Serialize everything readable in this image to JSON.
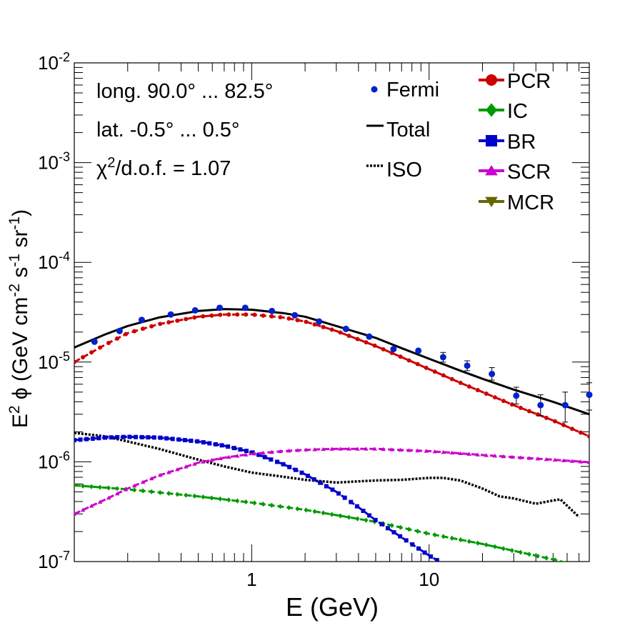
{
  "chart_data": {
    "type": "line",
    "xscale": "log",
    "yscale": "log",
    "xlim": [
      0.1,
      80
    ],
    "ylim": [
      1e-07,
      0.01
    ],
    "xlabel": "E (GeV)",
    "ylabel_parts": {
      "a": "E",
      "b": "2",
      "c": " ϕ (GeV cm",
      "d": "-2",
      "e": " s",
      "f": "-1",
      "g": " sr",
      "h": "-1",
      "i": ")"
    },
    "x_ticklabels": [
      {
        "v": 1,
        "label": "1"
      },
      {
        "v": 10,
        "label": "10"
      }
    ],
    "y_ticklabels": [
      {
        "exp": -7,
        "base": "10",
        "sup": "-7"
      },
      {
        "exp": -6,
        "base": "10",
        "sup": "-6"
      },
      {
        "exp": -5,
        "base": "10",
        "sup": "-5"
      },
      {
        "exp": -4,
        "base": "10",
        "sup": "-4"
      },
      {
        "exp": -3,
        "base": "10",
        "sup": "-3"
      },
      {
        "exp": -2,
        "base": "10",
        "sup": "-2"
      }
    ],
    "annotations": {
      "longitude": "long. 90.0° ... 82.5°",
      "latitude": "lat. -0.5° ... 0.5°",
      "chi_prefix": "χ",
      "chi_sup": "2",
      "chi_rest": "/d.o.f. = 1.07"
    },
    "legend_left": [
      {
        "key": "fermi",
        "label": "Fermi"
      },
      {
        "key": "total",
        "label": "Total"
      },
      {
        "key": "iso",
        "label": "ISO"
      }
    ],
    "legend_right": [
      {
        "key": "pcr",
        "label": "PCR",
        "color": "#cc0000",
        "marker": "circle"
      },
      {
        "key": "ic",
        "label": "IC",
        "color": "#009900",
        "marker": "diamond"
      },
      {
        "key": "br",
        "label": "BR",
        "color": "#0000cc",
        "marker": "square"
      },
      {
        "key": "scr",
        "label": "SCR",
        "color": "#cc00cc",
        "marker": "triangle-up"
      },
      {
        "key": "mcr",
        "label": "MCR",
        "color": "#666600",
        "marker": "triangle-down"
      }
    ],
    "fermi": {
      "color": "#0022cc",
      "points": [
        {
          "x": 0.13,
          "y": 1.6e-05
        },
        {
          "x": 0.18,
          "y": 2.05e-05
        },
        {
          "x": 0.24,
          "y": 2.65e-05
        },
        {
          "x": 0.35,
          "y": 3e-05
        },
        {
          "x": 0.48,
          "y": 3.3e-05
        },
        {
          "x": 0.66,
          "y": 3.5e-05
        },
        {
          "x": 0.92,
          "y": 3.5e-05
        },
        {
          "x": 1.3,
          "y": 3.25e-05
        },
        {
          "x": 1.75,
          "y": 2.95e-05
        },
        {
          "x": 2.4,
          "y": 2.55e-05
        },
        {
          "x": 3.4,
          "y": 2.15e-05
        },
        {
          "x": 4.6,
          "y": 1.8e-05
        },
        {
          "x": 6.3,
          "y": 1.35e-05
        },
        {
          "x": 8.7,
          "y": 1.3e-05
        },
        {
          "x": 12,
          "y": 1.12e-05,
          "err": [
            1e-05,
            1.25e-05
          ]
        },
        {
          "x": 16.4,
          "y": 9.2e-06,
          "err": [
            8.2e-06,
            1.03e-05
          ]
        },
        {
          "x": 22.6,
          "y": 7.6e-06,
          "err": [
            6.6e-06,
            8.8e-06
          ]
        },
        {
          "x": 31,
          "y": 4.6e-06,
          "err": [
            3.8e-06,
            5.6e-06
          ]
        },
        {
          "x": 42.5,
          "y": 3.7e-06,
          "err": [
            2.9e-06,
            4.7e-06
          ]
        },
        {
          "x": 58.5,
          "y": 3.7e-06,
          "err": [
            2.5e-06,
            5e-06
          ]
        },
        {
          "x": 80,
          "y": 4.7e-06,
          "err": [
            3.3e-06,
            6.2e-06
          ]
        }
      ]
    },
    "series": [
      {
        "name": "Total",
        "color": "#000000",
        "style": "solid",
        "x": [
          0.1,
          0.15,
          0.2,
          0.3,
          0.5,
          0.7,
          1,
          1.5,
          2,
          3,
          5,
          7,
          10,
          15,
          20,
          30,
          50,
          80
        ],
        "y": [
          1.4e-05,
          1.9e-05,
          2.3e-05,
          2.8e-05,
          3.25e-05,
          3.4e-05,
          3.35e-05,
          3.1e-05,
          2.85e-05,
          2.3e-05,
          1.75e-05,
          1.38e-05,
          1.08e-05,
          8.2e-06,
          6.8e-06,
          5.3e-06,
          4e-06,
          3e-06
        ]
      },
      {
        "name": "ISO",
        "color": "#000000",
        "style": "dotted",
        "x": [
          0.1,
          0.15,
          0.2,
          0.3,
          0.5,
          0.7,
          1,
          1.5,
          2,
          3,
          5,
          7,
          10,
          12,
          15,
          20,
          25,
          30,
          40,
          50,
          55,
          70
        ],
        "y": [
          1.95e-06,
          1.8e-06,
          1.6e-06,
          1.35e-06,
          1.05e-06,
          9e-07,
          7.8e-07,
          7.1e-07,
          6.6e-07,
          6.2e-07,
          6.5e-07,
          6.6e-07,
          6.9e-07,
          6.9e-07,
          6.5e-07,
          5.4e-07,
          4.5e-07,
          4.3e-07,
          3.8e-07,
          4.1e-07,
          4.2e-07,
          2.8e-07
        ]
      },
      {
        "name": "PCR",
        "color": "#cc0000",
        "style": "dashed",
        "x": [
          0.1,
          0.15,
          0.2,
          0.3,
          0.5,
          0.7,
          1,
          1.5,
          2,
          3,
          5,
          7,
          10,
          15,
          20,
          30,
          50,
          80
        ],
        "y": [
          1e-05,
          1.5e-05,
          1.95e-05,
          2.4e-05,
          2.85e-05,
          3e-05,
          3e-05,
          2.8e-05,
          2.55e-05,
          2.05e-05,
          1.45e-05,
          1.12e-05,
          8.5e-06,
          6.2e-06,
          5e-06,
          3.7e-06,
          2.6e-06,
          1.8e-06
        ]
      },
      {
        "name": "IC",
        "color": "#009900",
        "style": "dashed",
        "x": [
          0.1,
          0.2,
          0.5,
          1,
          2,
          5,
          10,
          20,
          50,
          80
        ],
        "y": [
          5.8e-07,
          5.3e-07,
          4.5e-07,
          3.9e-07,
          3.3e-07,
          2.5e-07,
          1.9e-07,
          1.5e-07,
          1.05e-07,
          8.5e-08
        ]
      },
      {
        "name": "BR",
        "color": "#0000cc",
        "style": "dashed",
        "x": [
          0.1,
          0.15,
          0.2,
          0.3,
          0.5,
          0.7,
          1,
          1.5,
          2,
          3,
          4,
          5,
          7,
          10,
          12
        ],
        "y": [
          1.65e-06,
          1.75e-06,
          1.78e-06,
          1.75e-06,
          1.6e-06,
          1.45e-06,
          1.25e-06,
          9.5e-07,
          7.5e-07,
          5e-07,
          3.5e-07,
          2.6e-07,
          1.75e-07,
          1.15e-07,
          9.5e-08
        ]
      },
      {
        "name": "SCR",
        "color": "#cc00cc",
        "style": "dashed",
        "x": [
          0.1,
          0.15,
          0.2,
          0.3,
          0.5,
          0.7,
          1,
          1.5,
          2,
          3,
          5,
          10,
          20,
          50,
          80
        ],
        "y": [
          3e-07,
          4.2e-07,
          5.4e-07,
          7.3e-07,
          9.8e-07,
          1.1e-06,
          1.2e-06,
          1.28e-06,
          1.32e-06,
          1.35e-06,
          1.35e-06,
          1.28e-06,
          1.17e-06,
          1.05e-06,
          9.9e-07
        ]
      }
    ]
  }
}
